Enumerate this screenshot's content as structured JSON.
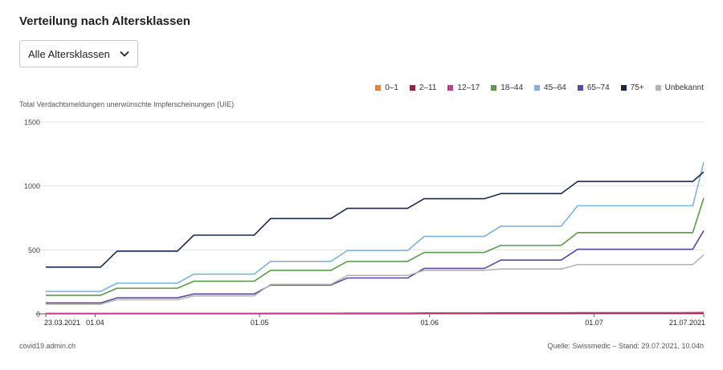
{
  "title": "Verteilung nach Altersklassen",
  "dropdown": {
    "selected": "Alle Altersklassen"
  },
  "footer": {
    "site": "covid19.admin.ch",
    "source": "Quelle: Swissmedic – Stand: 29.07.2021, 10.04h"
  },
  "chart_data": {
    "type": "line",
    "title": "Verteilung nach Altersklassen",
    "ylabel": "Total Verdachtsmeldungen unerwünschte Impferscheinungen (UIE)",
    "xlabel": "",
    "ylim": [
      0,
      1500
    ],
    "yticks": [
      0,
      500,
      1000,
      1500
    ],
    "grid": "horizontal",
    "legend_position": "top-right",
    "xrange": [
      "23.03.2021",
      "21.07.2021"
    ],
    "xticks": [
      "23.03.2021",
      "01.04",
      "01.05",
      "01.06",
      "01.07",
      "21.07.2021"
    ],
    "x": [
      "23.03.2021",
      "05.04.2021",
      "19.04.2021",
      "03.05.2021",
      "17.05.2021",
      "31.05.2021",
      "14.06.2021",
      "28.06.2021",
      "19.07.2021",
      "21.07.2021"
    ],
    "series": [
      {
        "name": "0–1",
        "color": "#e8822f",
        "values": [
          0,
          0,
          0,
          0,
          0,
          0,
          0,
          0,
          0,
          0
        ]
      },
      {
        "name": "2–11",
        "color": "#8b2747",
        "values": [
          2,
          2,
          2,
          3,
          3,
          4,
          4,
          5,
          5,
          6
        ]
      },
      {
        "name": "12–17",
        "color": "#c8388d",
        "values": [
          3,
          3,
          3,
          4,
          5,
          7,
          8,
          9,
          10,
          11
        ]
      },
      {
        "name": "18–44",
        "color": "#5a9a4a",
        "values": [
          145,
          200,
          255,
          340,
          410,
          480,
          535,
          635,
          635,
          905
        ]
      },
      {
        "name": "45–64",
        "color": "#7db1de",
        "values": [
          175,
          240,
          310,
          410,
          495,
          605,
          685,
          845,
          845,
          1185
        ]
      },
      {
        "name": "65–74",
        "color": "#5b4a9c",
        "values": [
          85,
          125,
          155,
          225,
          280,
          355,
          420,
          505,
          505,
          650
        ]
      },
      {
        "name": "75+",
        "color": "#1b2a4a",
        "values": [
          365,
          490,
          615,
          745,
          825,
          900,
          940,
          1035,
          1035,
          1110
        ]
      },
      {
        "name": "Unbekannt",
        "color": "#b5b5b5",
        "values": [
          75,
          110,
          140,
          230,
          300,
          340,
          350,
          385,
          385,
          460
        ]
      }
    ]
  }
}
